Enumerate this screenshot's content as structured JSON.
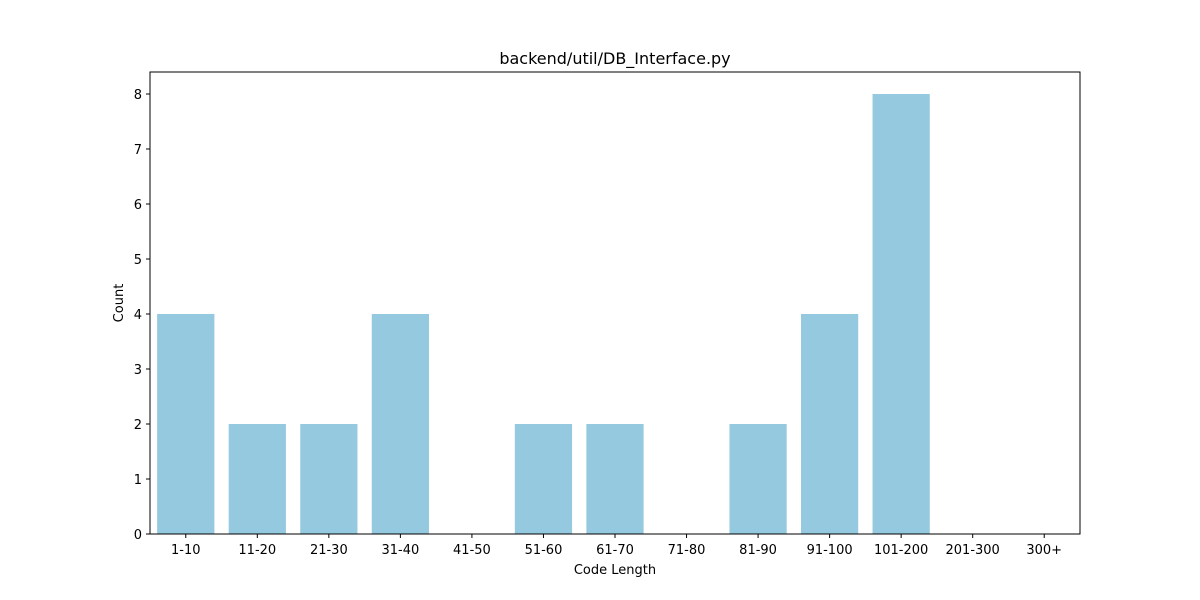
{
  "chart_data": {
    "type": "bar",
    "title": "backend/util/DB_Interface.py",
    "xlabel": "Code Length",
    "ylabel": "Count",
    "categories": [
      "1-10",
      "11-20",
      "21-30",
      "31-40",
      "41-50",
      "51-60",
      "61-70",
      "71-80",
      "81-90",
      "91-100",
      "101-200",
      "201-300",
      "300+"
    ],
    "values": [
      4,
      2,
      2,
      4,
      0,
      2,
      2,
      0,
      2,
      4,
      8,
      0,
      0
    ],
    "ylim": [
      0,
      8.4
    ],
    "yticks": [
      0,
      1,
      2,
      3,
      4,
      5,
      6,
      7,
      8
    ],
    "grid": false,
    "legend": "none",
    "bar_color": "#95c9df"
  }
}
